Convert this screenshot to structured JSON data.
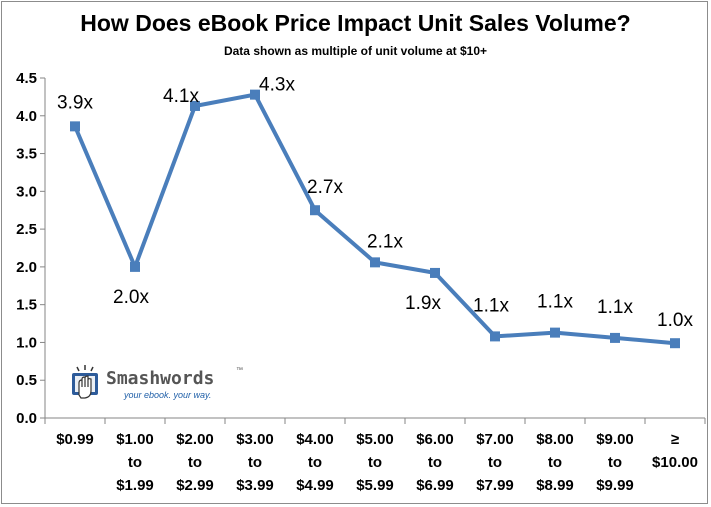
{
  "chart_data": {
    "type": "line",
    "title": "How Does eBook Price Impact Unit Sales Volume?",
    "subtitle": "Data shown as multiple of unit volume at $10+",
    "categories": [
      [
        "$0.99"
      ],
      [
        "$1.00",
        "to",
        "$1.99"
      ],
      [
        "$2.00",
        "to",
        "$2.99"
      ],
      [
        "$3.00",
        "to",
        "$3.99"
      ],
      [
        "$4.00",
        "to",
        "$4.99"
      ],
      [
        "$5.00",
        "to",
        "$5.99"
      ],
      [
        "$6.00",
        "to",
        "$6.99"
      ],
      [
        "$7.00",
        "to",
        "$7.99"
      ],
      [
        "$8.00",
        "to",
        "$8.99"
      ],
      [
        "$9.00",
        "to",
        "$9.99"
      ],
      [
        "≥",
        "$10.00"
      ]
    ],
    "values": [
      3.86,
      2.0,
      4.13,
      4.28,
      2.75,
      2.06,
      1.92,
      1.08,
      1.13,
      1.06,
      0.99
    ],
    "data_labels": [
      "3.9x",
      "2.0x",
      "4.1x",
      "4.3x",
      "2.7x",
      "2.1x",
      "1.9x",
      "1.1x",
      "1.1x",
      "1.1x",
      "1.0x"
    ],
    "ylim": [
      0,
      4.5
    ],
    "yticks": [
      "0.0",
      "0.5",
      "1.0",
      "1.5",
      "2.0",
      "2.5",
      "3.0",
      "3.5",
      "4.0",
      "4.5"
    ],
    "grid": false,
    "legend": "none",
    "line_color": "#4a7ebb"
  },
  "logo": {
    "name": "Smashwords",
    "trademark": "™",
    "tagline": "your ebook. your way."
  }
}
